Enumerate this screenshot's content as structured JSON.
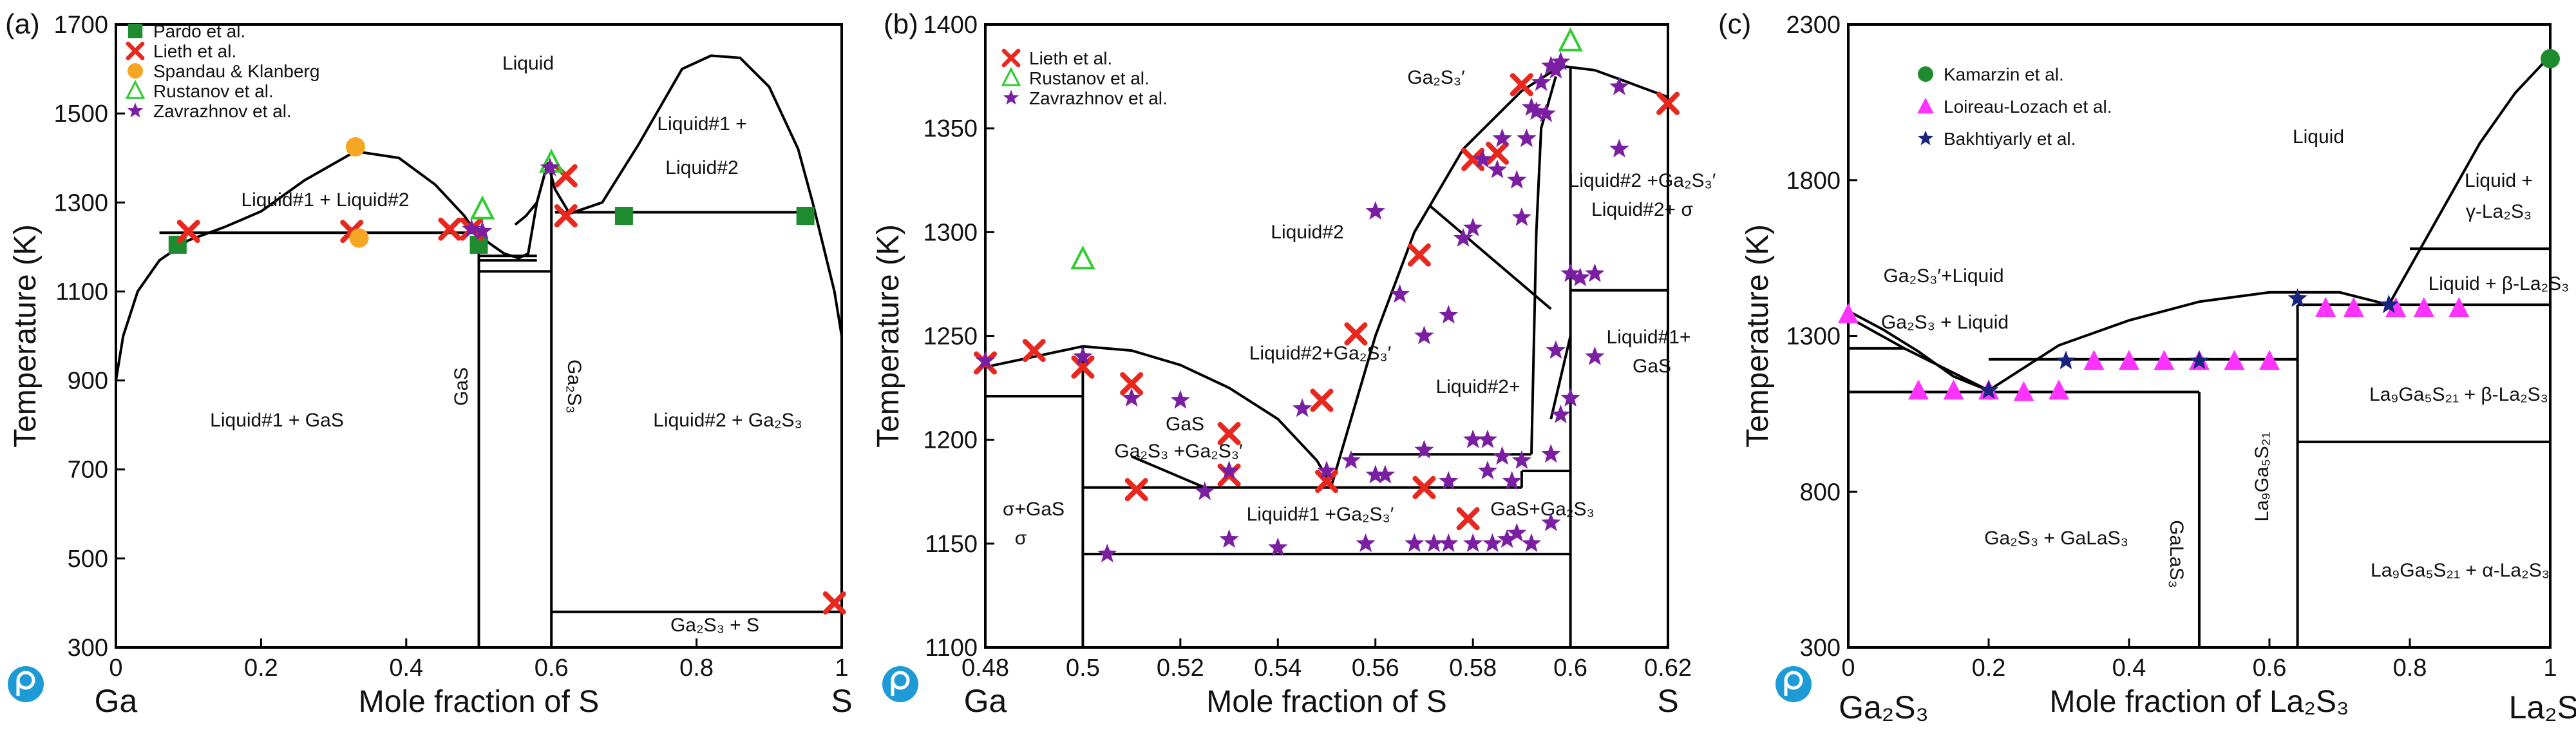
{
  "chart_data": [
    {
      "type": "scatter",
      "panel_label": "(a)",
      "xlabel": "Mole fraction of S",
      "ylabel": "Temperature (K)",
      "xlim": [
        0,
        1
      ],
      "ylim": [
        300,
        1700
      ],
      "x_ticks": [
        0,
        0.2,
        0.4,
        0.6,
        0.8,
        1
      ],
      "x_tick_labels": [
        "0",
        "0.2",
        "0.4",
        "0.6",
        "0.8",
        "1"
      ],
      "y_ticks": [
        300,
        500,
        700,
        900,
        1100,
        1300,
        1500,
        1700
      ],
      "y_tick_labels": [
        "300",
        "500",
        "700",
        "900",
        "1100",
        "1300",
        "1500",
        "1700"
      ],
      "left_element": "Ga",
      "right_element": "S",
      "phase_lines": [
        [
          [
            0,
            900
          ],
          [
            0.01,
            1000
          ],
          [
            0.03,
            1100
          ],
          [
            0.06,
            1170
          ],
          [
            0.1,
            1215
          ],
          [
            0.15,
            1245
          ],
          [
            0.2,
            1280
          ],
          [
            0.26,
            1350
          ],
          [
            0.33,
            1415
          ],
          [
            0.39,
            1400
          ],
          [
            0.44,
            1340
          ],
          [
            0.48,
            1270
          ],
          [
            0.5,
            1222
          ]
        ],
        [
          [
            0.06,
            1232
          ],
          [
            0.5,
            1232
          ]
        ],
        [
          [
            0.5,
            1232
          ],
          [
            0.513,
            1210
          ],
          [
            0.535,
            1185
          ],
          [
            0.555,
            1175
          ],
          [
            0.568,
            1185
          ],
          [
            0.58,
            1300
          ],
          [
            0.595,
            1390
          ]
        ],
        [
          [
            0.55,
            1250
          ],
          [
            0.565,
            1270
          ],
          [
            0.58,
            1300
          ],
          [
            0.595,
            1390
          ]
        ],
        [
          [
            0.595,
            1390
          ],
          [
            0.605,
            1330
          ],
          [
            0.625,
            1275
          ],
          [
            0.67,
            1300
          ],
          [
            0.72,
            1430
          ],
          [
            0.78,
            1600
          ],
          [
            0.82,
            1630
          ],
          [
            0.86,
            1625
          ],
          [
            0.9,
            1560
          ],
          [
            0.94,
            1420
          ],
          [
            0.96,
            1300
          ],
          [
            0.975,
            1200
          ],
          [
            0.99,
            1100
          ],
          [
            1.0,
            1000
          ]
        ],
        [
          [
            0.605,
            1278
          ],
          [
            0.95,
            1278
          ]
        ],
        [
          [
            0.5,
            1180
          ],
          [
            0.58,
            1180
          ]
        ],
        [
          [
            0.5,
            1170
          ],
          [
            0.58,
            1170
          ]
        ],
        [
          [
            0.5,
            1145
          ],
          [
            0.6,
            1145
          ]
        ],
        [
          [
            0.5,
            300
          ],
          [
            0.5,
            1232
          ]
        ],
        [
          [
            0.6,
            300
          ],
          [
            0.6,
            1390
          ]
        ],
        [
          [
            0,
            300
          ],
          [
            0.5,
            300
          ]
        ],
        [
          [
            0.6,
            380
          ],
          [
            1,
            380
          ]
        ]
      ],
      "series": [
        {
          "name": "Pardo et al.",
          "marker": "square",
          "color": "#1e8c2e",
          "x": [
            0.085,
            0.5,
            0.7,
            0.95
          ],
          "y": [
            1205,
            1205,
            1270,
            1270
          ]
        },
        {
          "name": "Lieth et al.",
          "marker": "x",
          "color": "#e8281e",
          "x": [
            0.1,
            0.325,
            0.46,
            0.49,
            0.62,
            0.62,
            0.99
          ],
          "y": [
            1235,
            1235,
            1240,
            1240,
            1360,
            1270,
            400
          ]
        },
        {
          "name": "Spandau & Klanberg",
          "marker": "circle",
          "color": "#f5a623",
          "x": [
            0.33,
            0.335
          ],
          "y": [
            1425,
            1220
          ]
        },
        {
          "name": "Rustanov et al.",
          "marker": "triangle-open",
          "color": "#33cc33",
          "x": [
            0.505,
            0.6
          ],
          "y": [
            1285,
            1390
          ]
        },
        {
          "name": "Zavrazhnov et al.",
          "marker": "star",
          "color": "#7b1fa2",
          "x": [
            0.49,
            0.505,
            0.598
          ],
          "y": [
            1240,
            1235,
            1378
          ]
        }
      ],
      "annotations": [
        "Liquid",
        "Liquid#1 + Liquid#2",
        "Liquid#1 +",
        "Liquid#2",
        "Liquid#1 + GaS",
        "GaS",
        "Ga₂S₃",
        "Liquid#2 + Ga₂S₃",
        "Ga₂S₃ + S"
      ]
    },
    {
      "type": "scatter",
      "panel_label": "(b)",
      "xlabel": "Mole fraction of S",
      "ylabel": "Temperature (K)",
      "xlim": [
        0.48,
        0.62
      ],
      "ylim": [
        1100,
        1400
      ],
      "x_ticks": [
        0.48,
        0.5,
        0.52,
        0.54,
        0.56,
        0.58,
        0.6,
        0.62
      ],
      "x_tick_labels": [
        "0.48",
        "0.5",
        "0.52",
        "0.54",
        "0.56",
        "0.58",
        "0.6",
        "0.62"
      ],
      "y_ticks": [
        1100,
        1150,
        1200,
        1250,
        1300,
        1350,
        1400
      ],
      "y_tick_labels": [
        "1100",
        "1150",
        "1200",
        "1250",
        "1300",
        "1350",
        "1400"
      ],
      "left_element": "Ga",
      "right_element": "S",
      "phase_lines": [
        [
          [
            0.48,
            1235
          ],
          [
            0.49,
            1240
          ],
          [
            0.5,
            1245
          ],
          [
            0.51,
            1243
          ],
          [
            0.52,
            1236
          ],
          [
            0.53,
            1225
          ],
          [
            0.54,
            1210
          ],
          [
            0.548,
            1190
          ],
          [
            0.551,
            1178
          ]
        ],
        [
          [
            0.551,
            1178
          ],
          [
            0.555,
            1210
          ],
          [
            0.56,
            1250
          ],
          [
            0.568,
            1300
          ],
          [
            0.578,
            1340
          ],
          [
            0.59,
            1368
          ],
          [
            0.598,
            1380
          ],
          [
            0.605,
            1378
          ],
          [
            0.612,
            1372
          ],
          [
            0.62,
            1365
          ]
        ],
        [
          [
            0.48,
            1221
          ],
          [
            0.5,
            1221
          ]
        ],
        [
          [
            0.5,
            1100
          ],
          [
            0.5,
            1245
          ]
        ],
        [
          [
            0.5,
            1177
          ],
          [
            0.59,
            1177
          ]
        ],
        [
          [
            0.5,
            1145
          ],
          [
            0.6,
            1145
          ]
        ],
        [
          [
            0.555,
            1193
          ],
          [
            0.592,
            1193
          ]
        ],
        [
          [
            0.59,
            1177
          ],
          [
            0.59,
            1185
          ]
        ],
        [
          [
            0.59,
            1185
          ],
          [
            0.6,
            1185
          ]
        ],
        [
          [
            0.6,
            1100
          ],
          [
            0.6,
            1380
          ]
        ],
        [
          [
            0.6,
            1272
          ],
          [
            0.62,
            1272
          ]
        ],
        [
          [
            0.592,
            1193
          ],
          [
            0.593,
            1300
          ],
          [
            0.594,
            1350
          ],
          [
            0.597,
            1375
          ]
        ],
        [
          [
            0.596,
            1210
          ],
          [
            0.6,
            1250
          ]
        ],
        [
          [
            0.571,
            1313
          ],
          [
            0.596,
            1263
          ]
        ],
        [
          [
            0.51,
            1192
          ],
          [
            0.525,
            1177
          ]
        ]
      ],
      "series": [
        {
          "name": "Lieth et al.",
          "marker": "x",
          "color": "#e8281e",
          "x": [
            0.48,
            0.49,
            0.5,
            0.51,
            0.511,
            0.53,
            0.53,
            0.549,
            0.55,
            0.556,
            0.569,
            0.57,
            0.579,
            0.58,
            0.585,
            0.59,
            0.62
          ],
          "y": [
            1237,
            1243,
            1235,
            1227,
            1176,
            1203,
            1183,
            1219,
            1180,
            1251,
            1289,
            1177,
            1162,
            1335,
            1338,
            1371,
            1362
          ]
        },
        {
          "name": "Rustanov et al.",
          "marker": "triangle-open",
          "color": "#33cc33",
          "x": [
            0.5,
            0.6
          ],
          "y": [
            1287,
            1392
          ]
        },
        {
          "name": "Zavrazhnov et al.",
          "marker": "star",
          "color": "#7b1fa2",
          "x": [
            0.48,
            0.5,
            0.505,
            0.51,
            0.52,
            0.525,
            0.53,
            0.53,
            0.54,
            0.545,
            0.55,
            0.555,
            0.558,
            0.56,
            0.562,
            0.565,
            0.568,
            0.57,
            0.572,
            0.575,
            0.575,
            0.578,
            0.58,
            0.58,
            0.582,
            0.583,
            0.584,
            0.585,
            0.586,
            0.587,
            0.588,
            0.589,
            0.59,
            0.59,
            0.591,
            0.592,
            0.593,
            0.594,
            0.595,
            0.596,
            0.597,
            0.598,
            0.6,
            0.602,
            0.605,
            0.61,
            0.56,
            0.57,
            0.58,
            0.575,
            0.583,
            0.586,
            0.589,
            0.592,
            0.596,
            0.598,
            0.6,
            0.605,
            0.61,
            0.596,
            0.597
          ],
          "y": [
            1238,
            1240,
            1145,
            1220,
            1219,
            1175,
            1185,
            1152,
            1148,
            1215,
            1185,
            1190,
            1150,
            1183,
            1183,
            1270,
            1150,
            1195,
            1150,
            1180,
            1260,
            1297,
            1200,
            1150,
            1335,
            1185,
            1150,
            1330,
            1345,
            1152,
            1180,
            1325,
            1307,
            1190,
            1345,
            1360,
            1358,
            1372,
            1357,
            1380,
            1378,
            1382,
            1280,
            1278,
            1280,
            1340,
            1310,
            1250,
            1302,
            1150,
            1200,
            1192,
            1155,
            1150,
            1193,
            1212,
            1220,
            1240,
            1370,
            1160,
            1243
          ]
        }
      ],
      "annotations": [
        "Ga₂S₃′",
        "Liquid#2",
        "Liquid#2 +Ga₂S₃′",
        "Liquid#2+ σ",
        "Liquid#2+Ga₂S₃′",
        "Liquid#2+",
        "GaS",
        "Ga₂S₃ +Ga₂S₃′",
        "Liquid#1+",
        "GaS",
        "σ+GaS",
        "σ",
        "Liquid#1 +Ga₂S₃′",
        "GaS+Ga₂S₃"
      ]
    },
    {
      "type": "scatter",
      "panel_label": "(c)",
      "xlabel": "Mole fraction of La₂S₃",
      "ylabel": "Temperature (K)",
      "xlim": [
        0,
        1
      ],
      "ylim": [
        300,
        2300
      ],
      "x_ticks": [
        0,
        0.2,
        0.4,
        0.6,
        0.8,
        1
      ],
      "x_tick_labels": [
        "0",
        "0.2",
        "0.4",
        "0.6",
        "0.8",
        "1"
      ],
      "y_ticks": [
        300,
        800,
        1300,
        1800,
        2300
      ],
      "y_tick_labels": [
        "300",
        "800",
        "1300",
        "1800",
        "2300"
      ],
      "left_element": "Ga₂S₃",
      "right_element": "La₂S₃",
      "phase_lines": [
        [
          [
            0,
            1380
          ],
          [
            0.05,
            1320
          ],
          [
            0.1,
            1250
          ],
          [
            0.15,
            1170
          ],
          [
            0.2,
            1125
          ]
        ],
        [
          [
            0.2,
            1125
          ],
          [
            0.3,
            1270
          ],
          [
            0.4,
            1350
          ],
          [
            0.5,
            1410
          ],
          [
            0.6,
            1440
          ],
          [
            0.7,
            1440
          ],
          [
            0.77,
            1400
          ]
        ],
        [
          [
            0.77,
            1400
          ],
          [
            0.8,
            1520
          ],
          [
            0.85,
            1720
          ],
          [
            0.9,
            1920
          ],
          [
            0.95,
            2080
          ],
          [
            1,
            2200
          ]
        ],
        [
          [
            0,
            1260
          ],
          [
            0.08,
            1260
          ]
        ],
        [
          [
            0.08,
            1260
          ],
          [
            0.2,
            1125
          ]
        ],
        [
          [
            0,
            1360
          ],
          [
            0.08,
            1260
          ]
        ],
        [
          [
            0,
            1120
          ],
          [
            0.5,
            1120
          ]
        ],
        [
          [
            0.5,
            300
          ],
          [
            0.5,
            1120
          ]
        ],
        [
          [
            0.2,
            1225
          ],
          [
            0.64,
            1225
          ]
        ],
        [
          [
            0.64,
            300
          ],
          [
            0.64,
            1400
          ]
        ],
        [
          [
            0.64,
            1400
          ],
          [
            1,
            1400
          ]
        ],
        [
          [
            0.8,
            1580
          ],
          [
            1,
            1580
          ]
        ],
        [
          [
            0.64,
            960
          ],
          [
            1,
            960
          ]
        ]
      ],
      "series": [
        {
          "name": "Kamarzin et al.",
          "marker": "circle",
          "color": "#1e8c2e",
          "x": [
            1.0
          ],
          "y": [
            2190
          ]
        },
        {
          "name": "Loireau-Lozach et al.",
          "marker": "triangle",
          "color": "#ff33ff",
          "x": [
            0,
            0.1,
            0.15,
            0.2,
            0.25,
            0.3,
            0.35,
            0.4,
            0.45,
            0.5,
            0.55,
            0.6,
            0.68,
            0.72,
            0.78,
            0.82,
            0.87
          ],
          "y": [
            1370,
            1125,
            1125,
            1125,
            1120,
            1125,
            1220,
            1220,
            1220,
            1220,
            1220,
            1220,
            1390,
            1390,
            1390,
            1390,
            1390
          ]
        },
        {
          "name": "Bakhtiyarly et al.",
          "marker": "star",
          "color": "#1a237e",
          "x": [
            0.2,
            0.31,
            0.5,
            0.64,
            0.77
          ],
          "y": [
            1125,
            1220,
            1220,
            1420,
            1400
          ]
        }
      ],
      "annotations": [
        "Liquid",
        "Liquid +",
        "γ-La₂S₃",
        "Ga₂S₃′+Liquid",
        "Ga₂S₃ + Liquid",
        "Liquid + β-La₂S₃",
        "La₉Ga₅S₂₁ + β-La₂S₃",
        "Ga₂S₃ + GaLaS₃",
        "GaLaS₃",
        "La₉Ga₅S₂₁",
        "La₉Ga₅S₂₁ + α-La₂S₃"
      ]
    }
  ]
}
